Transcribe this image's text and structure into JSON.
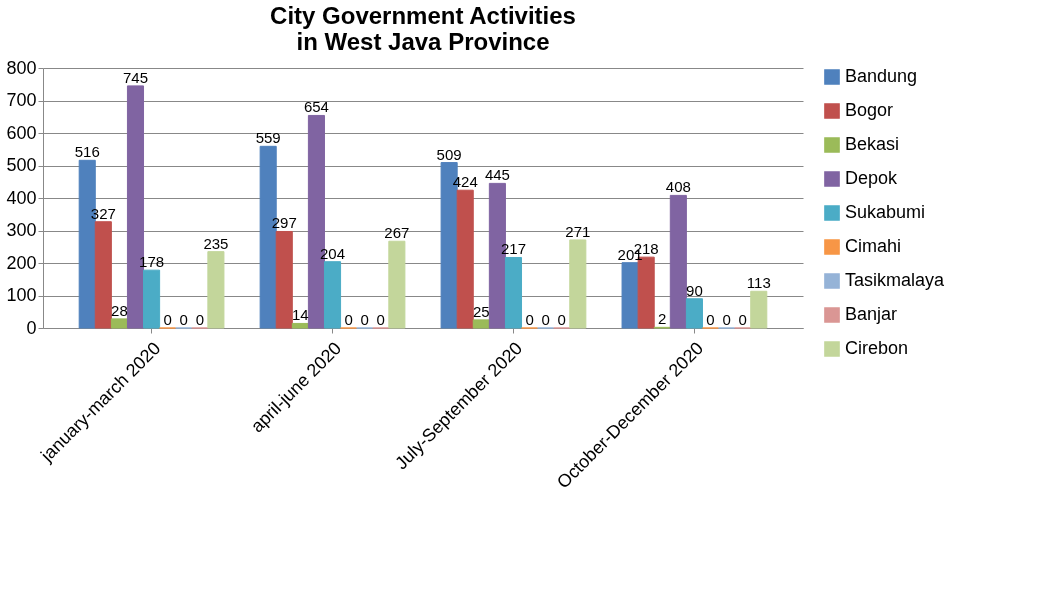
{
  "chart_data": {
    "type": "bar",
    "title": "City Government Activities\nin West Java Province",
    "categories": [
      "january-march 2020",
      "april-june 2020",
      "July-September 2020",
      "October-December 2020"
    ],
    "series": [
      {
        "name": "Bandung",
        "color": "#4f81bd",
        "values": [
          516,
          559,
          509,
          201
        ]
      },
      {
        "name": "Bogor",
        "color": "#c0504d",
        "values": [
          327,
          297,
          424,
          218
        ]
      },
      {
        "name": "Bekasi",
        "color": "#9bbb59",
        "values": [
          28,
          14,
          25,
          2
        ]
      },
      {
        "name": "Depok",
        "color": "#8064a2",
        "values": [
          745,
          654,
          445,
          408
        ]
      },
      {
        "name": "Sukabumi",
        "color": "#4bacc6",
        "values": [
          178,
          204,
          217,
          90
        ]
      },
      {
        "name": "Cimahi",
        "color": "#f79646",
        "values": [
          0,
          0,
          0,
          0
        ]
      },
      {
        "name": "Tasikmalaya",
        "color": "#95b3d7",
        "values": [
          0,
          0,
          0,
          0
        ]
      },
      {
        "name": "Banjar",
        "color": "#da9694",
        "values": [
          0,
          0,
          0,
          0
        ]
      },
      {
        "name": "Cirebon",
        "color": "#c3d69b",
        "values": [
          235,
          267,
          271,
          113
        ]
      }
    ],
    "ylim": [
      0,
      800
    ],
    "yticks": [
      0,
      100,
      200,
      300,
      400,
      500,
      600,
      700,
      800
    ],
    "grid": "y",
    "legend": "right",
    "data_labels": true
  }
}
